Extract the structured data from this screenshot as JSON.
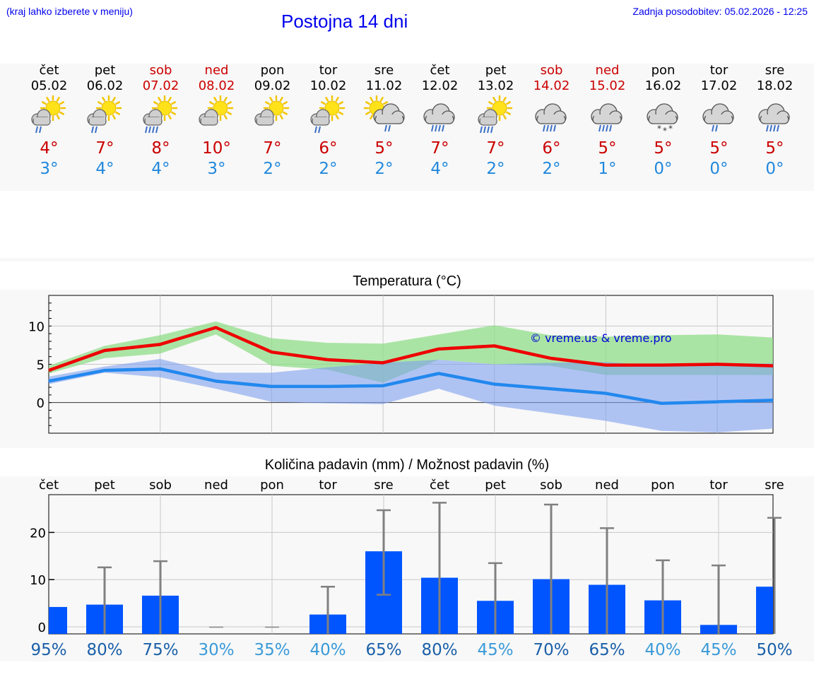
{
  "header": {
    "location_hint": "(kraj lahko izberete v meniju)",
    "title": "Postojna 14 dni",
    "updated": "Zadnja posodobitev: 05.02.2026 - 12:25"
  },
  "colors": {
    "max": "#cc0000",
    "min": "#2288dd",
    "bar": "#0055ff",
    "link": "#0000ee"
  },
  "days": [
    {
      "name": "čet",
      "date": "05.02",
      "weekend": false,
      "icon": "sun-cloud-rain-icon",
      "tmax": "4°",
      "tmin": "3°"
    },
    {
      "name": "pet",
      "date": "06.02",
      "weekend": false,
      "icon": "sun-cloud-rain-icon",
      "tmax": "7°",
      "tmin": "4°"
    },
    {
      "name": "sob",
      "date": "07.02",
      "weekend": true,
      "icon": "sun-cloud-heavy-rain-icon",
      "tmax": "8°",
      "tmin": "4°"
    },
    {
      "name": "ned",
      "date": "08.02",
      "weekend": true,
      "icon": "sun-cloud-icon",
      "tmax": "10°",
      "tmin": "3°"
    },
    {
      "name": "pon",
      "date": "09.02",
      "weekend": false,
      "icon": "sun-cloud-icon",
      "tmax": "7°",
      "tmin": "2°"
    },
    {
      "name": "tor",
      "date": "10.02",
      "weekend": false,
      "icon": "sun-cloud-rain-icon",
      "tmax": "6°",
      "tmin": "2°"
    },
    {
      "name": "sre",
      "date": "11.02",
      "weekend": false,
      "icon": "sun-cloud-shower-icon",
      "tmax": "5°",
      "tmin": "2°"
    },
    {
      "name": "čet",
      "date": "12.02",
      "weekend": false,
      "icon": "cloud-heavy-rain-icon",
      "tmax": "7°",
      "tmin": "4°"
    },
    {
      "name": "pet",
      "date": "13.02",
      "weekend": false,
      "icon": "sun-cloud-heavy-rain-icon",
      "tmax": "7°",
      "tmin": "2°"
    },
    {
      "name": "sob",
      "date": "14.02",
      "weekend": true,
      "icon": "cloud-heavy-rain-icon",
      "tmax": "6°",
      "tmin": "2°"
    },
    {
      "name": "ned",
      "date": "15.02",
      "weekend": true,
      "icon": "cloud-heavy-rain-icon",
      "tmax": "5°",
      "tmin": "1°"
    },
    {
      "name": "pon",
      "date": "16.02",
      "weekend": false,
      "icon": "cloud-snow-icon",
      "tmax": "5°",
      "tmin": "0°"
    },
    {
      "name": "tor",
      "date": "17.02",
      "weekend": false,
      "icon": "cloud-rain-icon",
      "tmax": "5°",
      "tmin": "0°"
    },
    {
      "name": "sre",
      "date": "18.02",
      "weekend": false,
      "icon": "cloud-heavy-rain-icon",
      "tmax": "5°",
      "tmin": "0°"
    }
  ],
  "chart_data": [
    {
      "type": "line",
      "title": "Temperatura (°C)",
      "watermark": "© vreme.us & vreme.pro",
      "ylim": [
        -4,
        14
      ],
      "yticks": [
        0,
        5,
        10
      ],
      "x": [
        0,
        1,
        2,
        3,
        4,
        5,
        6,
        7,
        8,
        9,
        10,
        11,
        12,
        13
      ],
      "series": [
        {
          "name": "max",
          "values": [
            4.2,
            6.8,
            7.6,
            9.8,
            6.6,
            5.6,
            5.2,
            7.0,
            7.4,
            5.8,
            4.9,
            4.9,
            5.0,
            4.8
          ],
          "band_low": [
            3.8,
            5.8,
            6.4,
            8.9,
            4.8,
            4.3,
            2.6,
            5.6,
            5.0,
            4.8,
            3.6,
            3.6,
            3.6,
            3.6
          ],
          "band_high": [
            4.8,
            7.4,
            8.8,
            10.6,
            8.4,
            7.8,
            7.7,
            8.9,
            10.1,
            8.8,
            8.6,
            8.8,
            8.9,
            8.5
          ]
        },
        {
          "name": "min",
          "values": [
            2.8,
            4.2,
            4.4,
            2.8,
            2.1,
            2.1,
            2.2,
            3.8,
            2.4,
            1.8,
            1.2,
            -0.1,
            0.1,
            0.3
          ],
          "band_low": [
            2.4,
            3.9,
            3.3,
            1.8,
            0.1,
            -0.1,
            -0.2,
            1.8,
            -0.4,
            -1.4,
            -2.4,
            -3.7,
            -3.9,
            -3.4
          ],
          "band_high": [
            3.4,
            4.7,
            5.7,
            3.9,
            3.9,
            4.6,
            5.2,
            5.6,
            5.0,
            5.2,
            5.3,
            4.8,
            5.1,
            5.1
          ]
        }
      ]
    },
    {
      "type": "bar",
      "title": "Količina padavin (mm) / Možnost padavin (%)",
      "categories": [
        "čet",
        "pet",
        "sob",
        "ned",
        "pon",
        "tor",
        "sre",
        "čet",
        "pet",
        "sob",
        "ned",
        "pon",
        "tor",
        "sre"
      ],
      "ylim": [
        -1.5,
        28
      ],
      "yticks": [
        0,
        10,
        20
      ],
      "values": [
        4.2,
        4.7,
        6.6,
        0,
        0,
        2.6,
        16.0,
        10.4,
        5.5,
        10.1,
        8.9,
        5.6,
        0.4,
        8.5
      ],
      "err_low": [
        null,
        0,
        0,
        null,
        null,
        0,
        6.8,
        0,
        0,
        0,
        0,
        0,
        0,
        null
      ],
      "err_high": [
        null,
        12.6,
        13.9,
        null,
        null,
        8.5,
        24.7,
        26.3,
        13.5,
        25.9,
        20.9,
        14.1,
        13.0,
        23.1
      ],
      "probability": [
        "95%",
        "80%",
        "75%",
        "30%",
        "35%",
        "40%",
        "65%",
        "80%",
        "45%",
        "70%",
        "65%",
        "40%",
        "45%",
        "50%"
      ],
      "probability_high": [
        true,
        true,
        true,
        false,
        false,
        false,
        true,
        true,
        false,
        true,
        true,
        false,
        false,
        true
      ]
    }
  ]
}
